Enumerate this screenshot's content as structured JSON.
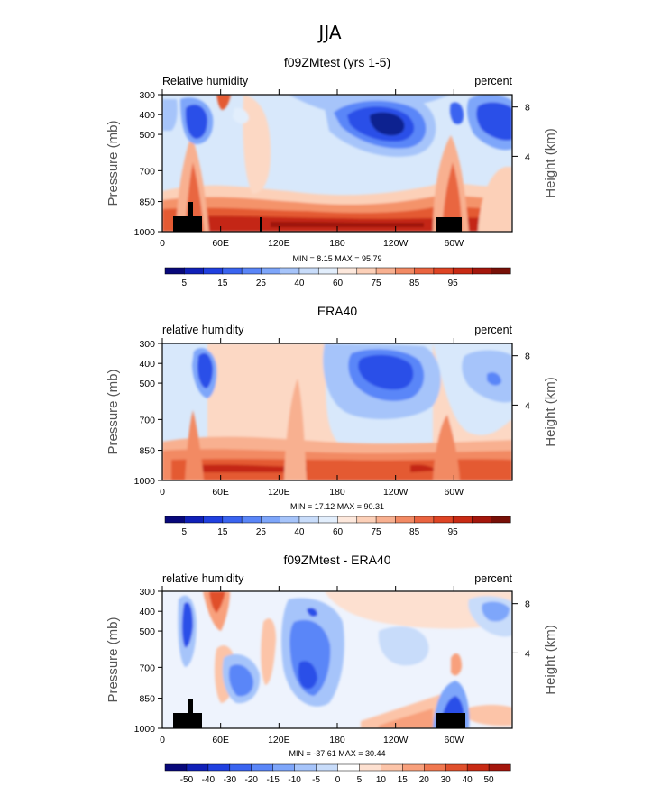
{
  "figure": {
    "title": "JJA"
  },
  "chart_data": [
    {
      "type": "heatmap",
      "title": "f09ZMtest (yrs 1-5)",
      "left_label": "Relative humidity",
      "right_label": "percent",
      "ylabel": "Pressure (mb)",
      "ylabel_right": "Height (km)",
      "xticks": [
        "0",
        "60E",
        "120E",
        "180",
        "120W",
        "60W"
      ],
      "yticks": [
        "300",
        "400",
        "500",
        "700",
        "850",
        "1000"
      ],
      "height_ticks": [
        "8",
        "4"
      ],
      "min_max": "MIN =    8.15   MAX =   95.79",
      "colorbar": {
        "labels": [
          "5",
          "15",
          "25",
          "40",
          "60",
          "75",
          "85",
          "95"
        ],
        "colors": [
          "#08087a",
          "#1020b8",
          "#2040e0",
          "#3a64f0",
          "#5a86f8",
          "#7ea6fa",
          "#a6c4fa",
          "#c8dcfa",
          "#e2eefc",
          "#fde8dc",
          "#fcd0b8",
          "#f8b090",
          "#f28a64",
          "#ea6440",
          "#de4424",
          "#c82a14",
          "#a4160c",
          "#781008"
        ]
      }
    },
    {
      "type": "heatmap",
      "title": "ERA40",
      "left_label": "relative humidity",
      "right_label": "percent",
      "ylabel": "Pressure (mb)",
      "ylabel_right": "Height (km)",
      "xticks": [
        "0",
        "60E",
        "120E",
        "180",
        "120W",
        "60W"
      ],
      "yticks": [
        "300",
        "400",
        "500",
        "700",
        "850",
        "1000"
      ],
      "height_ticks": [
        "8",
        "4"
      ],
      "min_max": "MIN =   17.12   MAX =   90.31",
      "colorbar": {
        "labels": [
          "5",
          "15",
          "25",
          "40",
          "60",
          "75",
          "85",
          "95"
        ],
        "colors": [
          "#08087a",
          "#1020b8",
          "#2040e0",
          "#3a64f0",
          "#5a86f8",
          "#7ea6fa",
          "#a6c4fa",
          "#c8dcfa",
          "#e2eefc",
          "#fde8dc",
          "#fcd0b8",
          "#f8b090",
          "#f28a64",
          "#ea6440",
          "#de4424",
          "#c82a14",
          "#a4160c",
          "#781008"
        ]
      }
    },
    {
      "type": "heatmap",
      "title": "f09ZMtest - ERA40",
      "left_label": "relative humidity",
      "right_label": "percent",
      "ylabel": "Pressure (mb)",
      "ylabel_right": "Height (km)",
      "xticks": [
        "0",
        "60E",
        "120E",
        "180",
        "120W",
        "60W"
      ],
      "yticks": [
        "300",
        "400",
        "500",
        "700",
        "850",
        "1000"
      ],
      "height_ticks": [
        "8",
        "4"
      ],
      "min_max": "MIN =  -37.61   MAX =   30.44",
      "colorbar": {
        "labels": [
          "-50",
          "-40",
          "-30",
          "-20",
          "-15",
          "-10",
          "-5",
          "0",
          "5",
          "10",
          "15",
          "20",
          "30",
          "40",
          "50"
        ],
        "colors": [
          "#08087a",
          "#1020b8",
          "#2040e0",
          "#3a64f0",
          "#5a86f8",
          "#7ea6fa",
          "#a6c4fa",
          "#c8dcfa",
          "#ffffff",
          "#fde0d0",
          "#fcc4a8",
          "#f8a07c",
          "#f07850",
          "#e0502c",
          "#c82a14",
          "#a4160c"
        ]
      }
    }
  ]
}
